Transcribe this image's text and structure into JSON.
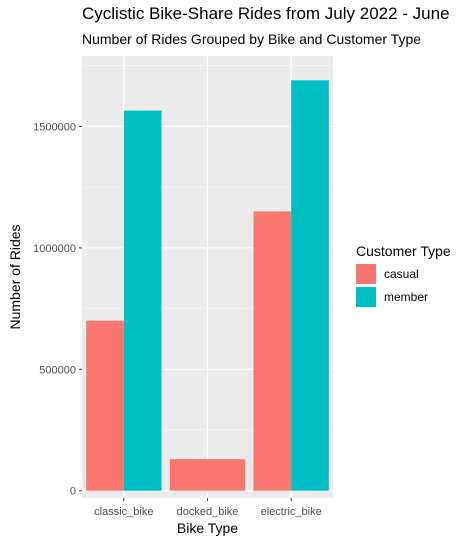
{
  "chart_data": {
    "type": "bar",
    "title": "Cyclistic Bike-Share Rides from July 2022 - June",
    "subtitle": "Number of Rides Grouped by Bike and Customer Type",
    "xlabel": "Bike Type",
    "ylabel": "Number of Rides",
    "categories": [
      "classic_bike",
      "docked_bike",
      "electric_bike"
    ],
    "series": [
      {
        "name": "casual",
        "color": "#F8766D",
        "values": [
          700000,
          130000,
          1150000
        ]
      },
      {
        "name": "member",
        "color": "#00BFC4",
        "values": [
          1565000,
          0,
          1690000
        ]
      }
    ],
    "ylim": [
      -30000,
      1790000
    ],
    "yticks": [
      0,
      500000,
      1000000,
      1500000
    ],
    "ytick_labels": [
      "0",
      "500000",
      "1000000",
      "1500000"
    ],
    "grid": true,
    "legend": {
      "title": "Customer Type",
      "position": "right"
    },
    "panel_background": "#EBEBEB"
  }
}
